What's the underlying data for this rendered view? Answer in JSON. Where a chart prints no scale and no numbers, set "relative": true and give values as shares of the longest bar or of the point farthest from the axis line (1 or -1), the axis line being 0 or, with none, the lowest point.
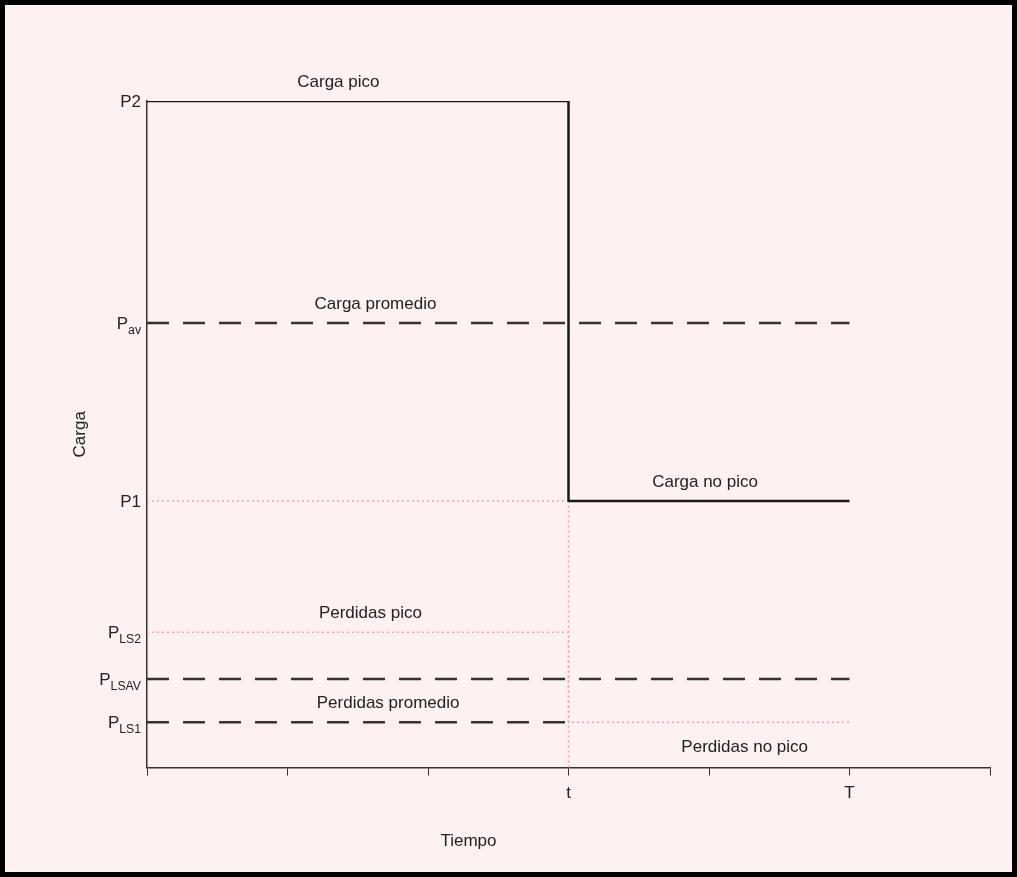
{
  "chart_data": {
    "type": "line",
    "xlabel": "Tiempo",
    "ylabel": "Carga",
    "relative": true,
    "legend": false,
    "grid": false,
    "marker": "none",
    "categories": [
      null,
      null,
      null,
      "t",
      null,
      "T",
      null
    ],
    "series": [
      {
        "type": "step",
        "values": [
          1,
          1,
          1,
          0.4,
          0.4,
          0.4,
          null
        ],
        "color": "#1a1a1a",
        "line_style": "solid"
      },
      {
        "values": [
          0.667,
          0.667,
          0.667,
          0.667,
          0.667,
          0.667,
          null
        ],
        "color": "#333333",
        "line_style": "dashed"
      },
      {
        "values": [
          0.4,
          0.4,
          0.4,
          0.4,
          null,
          null,
          null
        ],
        "color": "#f0a0a0",
        "line_style": "dotted"
      },
      {
        "type": "step",
        "values": [
          0.203,
          0.203,
          0.203,
          0.068,
          0.068,
          0.068,
          null
        ],
        "color": "#f0a0a0",
        "line_style": "dotted"
      },
      {
        "values": [
          0.133,
          0.133,
          0.133,
          0.133,
          0.133,
          0.133,
          null
        ],
        "color": "#333333",
        "line_style": "dashed"
      },
      {
        "values": [
          0.068,
          0.068,
          0.068,
          0.068,
          null,
          null,
          null
        ],
        "color": "#333333",
        "line_style": "dashed"
      }
    ],
    "ref_lines": [
      {
        "axis": "x",
        "value": "t",
        "color": "#f0a0a0",
        "line_style": "dotted"
      }
    ],
    "annotations": [
      "P2",
      "P$_{av}$",
      "P1",
      "P$_{LS2}$",
      "P$_{LSAV}$",
      "P$_{LS1}$",
      {
        "text": "Carga pico",
        "y": 1
      },
      {
        "text": "Carga promedio",
        "y": 0.667
      },
      {
        "text": "Carga no pico",
        "y": 0.4
      },
      {
        "text": "Perdidas pico",
        "y": 0.203
      },
      {
        "text": "Perdidas promedio",
        "y": 0.068
      },
      {
        "text": "Perdidas no pico",
        "y": 0.068
      }
    ]
  }
}
